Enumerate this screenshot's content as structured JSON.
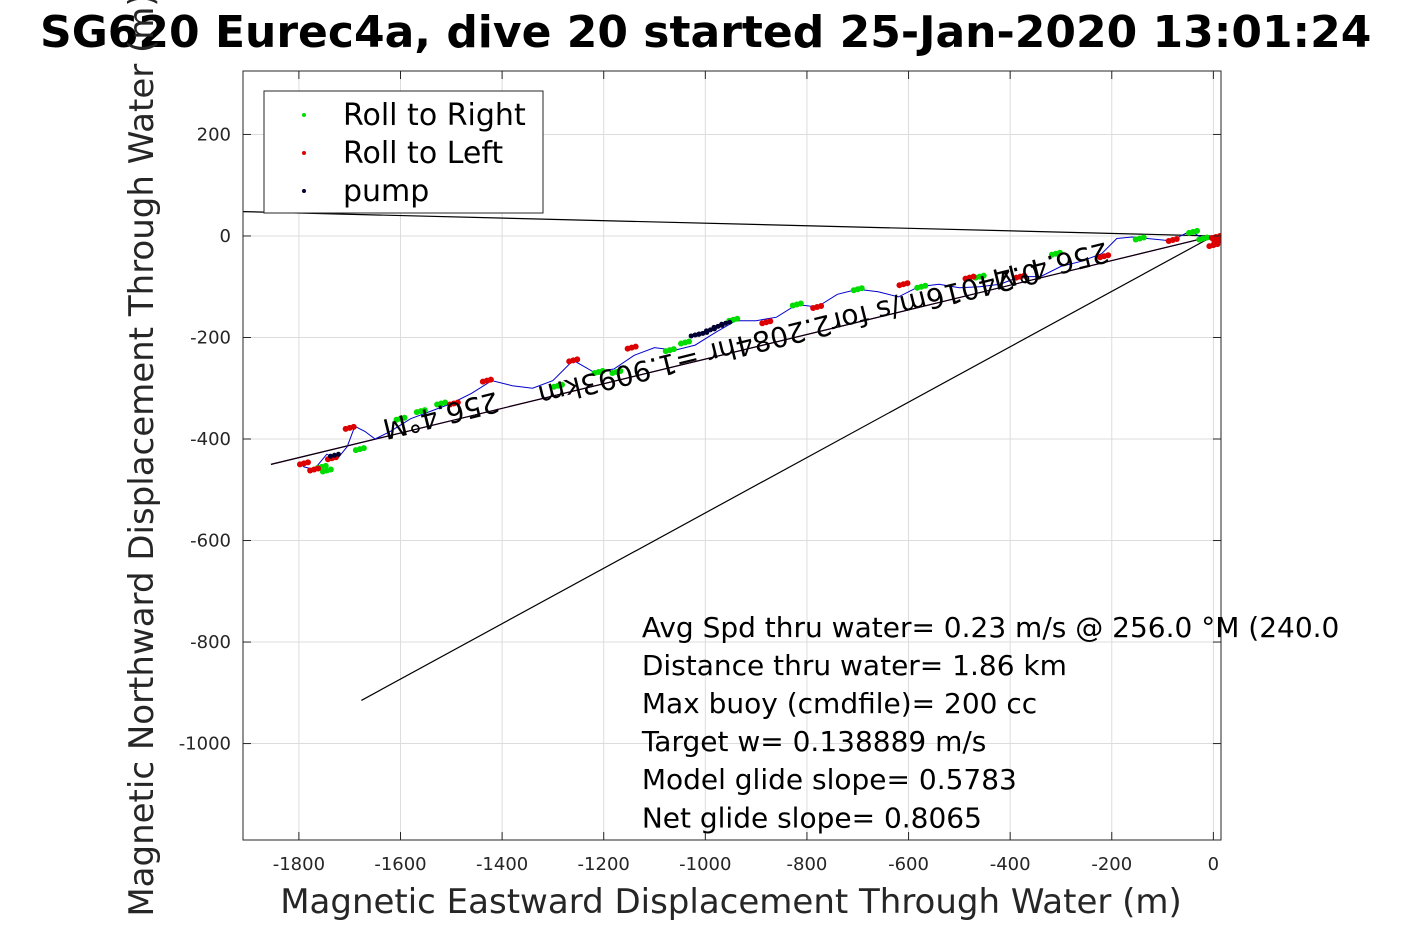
{
  "chart_data": {
    "type": "line",
    "title": "SG620 Eurec4a, dive 20 started 25-Jan-2020 13:01:24",
    "xlabel": "Magnetic Eastward Displacement Through Water (m)",
    "ylabel": "Magnetic Northward Displacement Through Water (m)",
    "xlim": [
      -1910,
      15
    ],
    "ylim": [
      -1190,
      325
    ],
    "xticks": [
      -1800,
      -1600,
      -1400,
      -1200,
      -1000,
      -800,
      -600,
      -400,
      -200,
      0
    ],
    "yticks": [
      200,
      0,
      -200,
      -400,
      -600,
      -800,
      -1000
    ],
    "grid": true,
    "legend": {
      "placement": "top-left",
      "entries": [
        {
          "label": "Roll to Right",
          "color": "#00dd00"
        },
        {
          "label": "Roll to Left",
          "color": "#dd0000"
        },
        {
          "label": "pump",
          "color": "#000033"
        }
      ]
    },
    "reference_lines": [
      {
        "x": [
          0,
          -1855
        ],
        "y": [
          0,
          -450
        ],
        "color": "#cc00cc"
      },
      {
        "x": [
          0,
          -1910
        ],
        "y": [
          0,
          48
        ],
        "color": "#000000"
      },
      {
        "x": [
          0,
          -1677
        ],
        "y": [
          0,
          -915
        ],
        "color": "#000000"
      },
      {
        "x": [
          0,
          -1855
        ],
        "y": [
          0,
          -450
        ],
        "color": "#000000"
      }
    ],
    "track": {
      "color": "#0000cc",
      "x": [
        10,
        -20,
        -45,
        -65,
        -80,
        -100,
        -130,
        -160,
        -190,
        -220,
        -260,
        -300,
        -340,
        -380,
        -420,
        -460,
        -500,
        -540,
        -580,
        -620,
        -660,
        -700,
        -740,
        -780,
        -820,
        -860,
        -900,
        -940,
        -980,
        -1020,
        -1060,
        -1100,
        -1140,
        -1180,
        -1220,
        -1260,
        -1300,
        -1340,
        -1380,
        -1420,
        -1460,
        -1500,
        -1540,
        -1580,
        -1620,
        -1650,
        -1670,
        -1690,
        -1705,
        -1725,
        -1745,
        -1770,
        -1790,
        -1800
      ],
      "y": [
        -2,
        -5,
        10,
        0,
        -10,
        -8,
        -5,
        -2,
        -5,
        -35,
        -50,
        -60,
        -80,
        -80,
        -95,
        -100,
        -102,
        -95,
        -100,
        -120,
        -110,
        -105,
        -115,
        -140,
        -135,
        -160,
        -167,
        -167,
        -190,
        -215,
        -225,
        -220,
        -235,
        -262,
        -268,
        -245,
        -285,
        -300,
        -295,
        -285,
        -310,
        -330,
        -345,
        -360,
        -385,
        -400,
        -385,
        -375,
        -415,
        -440,
        -430,
        -460,
        -455,
        -445
      ]
    },
    "roll_right": [
      {
        "x": -1175,
        "y": -268
      },
      {
        "x": -1070,
        "y": -225
      },
      {
        "x": -1040,
        "y": -210
      },
      {
        "x": -945,
        "y": -165
      },
      {
        "x": -820,
        "y": -135
      },
      {
        "x": -700,
        "y": -105
      },
      {
        "x": -575,
        "y": -100
      },
      {
        "x": -460,
        "y": -80
      },
      {
        "x": -310,
        "y": -35
      },
      {
        "x": -145,
        "y": -5
      },
      {
        "x": -40,
        "y": 8
      },
      {
        "x": -20,
        "y": -5
      },
      {
        "x": -1600,
        "y": -360
      },
      {
        "x": -1560,
        "y": -345
      },
      {
        "x": -1520,
        "y": -330
      },
      {
        "x": -1290,
        "y": -295
      },
      {
        "x": -1210,
        "y": -268
      },
      {
        "x": -1680,
        "y": -420
      },
      {
        "x": -1745,
        "y": -462
      },
      {
        "x": -1755,
        "y": -455
      }
    ],
    "roll_left": [
      {
        "x": -1260,
        "y": -245
      },
      {
        "x": -1145,
        "y": -220
      },
      {
        "x": -880,
        "y": -170
      },
      {
        "x": -780,
        "y": -140
      },
      {
        "x": -610,
        "y": -95
      },
      {
        "x": -480,
        "y": -82
      },
      {
        "x": -380,
        "y": -80
      },
      {
        "x": -215,
        "y": -40
      },
      {
        "x": -80,
        "y": -8
      },
      {
        "x": 5,
        "y": -2
      },
      {
        "x": 10,
        "y": -10
      },
      {
        "x": 0,
        "y": -18
      },
      {
        "x": -1430,
        "y": -285
      },
      {
        "x": -1495,
        "y": -330
      },
      {
        "x": -1700,
        "y": -378
      },
      {
        "x": -1735,
        "y": -438
      },
      {
        "x": -1790,
        "y": -448
      },
      {
        "x": -1770,
        "y": -460
      }
    ],
    "pump": [
      {
        "x": -1020,
        "y": -195
      },
      {
        "x": -1005,
        "y": -192
      },
      {
        "x": -990,
        "y": -185
      },
      {
        "x": -975,
        "y": -178
      },
      {
        "x": -960,
        "y": -172
      },
      {
        "x": -1730,
        "y": -432
      }
    ],
    "annotations": [
      {
        "text": "Avg Spd thru water=  0.23 m/s @ 256.0 °M (240.0",
        "x": -1125,
        "y": -790
      },
      {
        "text": "Distance thru water=  1.86 km",
        "x": -1125,
        "y": -865
      },
      {
        "text": "Max buoy (cmdfile)= 200 cc",
        "x": -1125,
        "y": -940
      },
      {
        "text": "Target w= 0.138889 m/s",
        "x": -1125,
        "y": -1015
      },
      {
        "text": "Model glide slope= 0.5783",
        "x": -1125,
        "y": -1090
      },
      {
        "text": "Net glide slope= 0.8065",
        "x": -1125,
        "y": -1165
      }
    ],
    "rotated_labels": [
      {
        "text": "0.24016m/s for2.2084hr =1.9093km",
        "x": -840,
        "y": -175,
        "angle": 166
      },
      {
        "text": "256.4°M",
        "x": -1525,
        "y": -335,
        "angle": 166
      },
      {
        "text": "256.4°M",
        "x": -325,
        "y": -40,
        "angle": 166
      }
    ]
  }
}
